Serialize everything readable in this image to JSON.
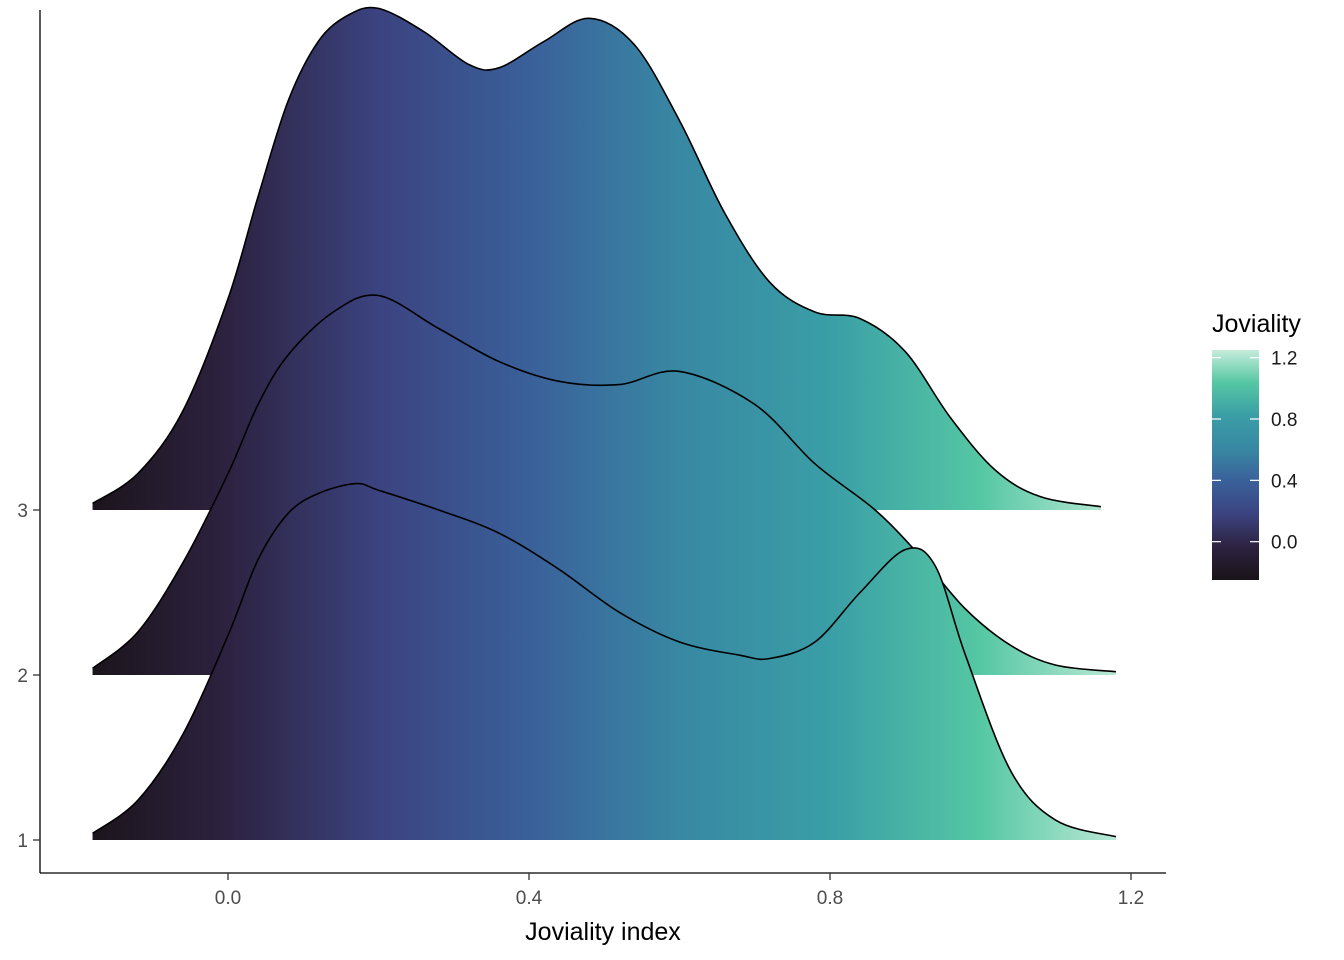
{
  "chart_data": {
    "type": "ridgeline",
    "xlabel": "Joviality index",
    "ylabel": "",
    "xlim": [
      -0.2,
      1.25
    ],
    "x_ticks": [
      0.0,
      0.4,
      0.8,
      1.2
    ],
    "x_tick_labels": [
      "0.0",
      "0.4",
      "0.8",
      "1.2"
    ],
    "categories": [
      "1",
      "2",
      "3"
    ],
    "fill_gradient_by": "x",
    "legend": {
      "title": "Joviality",
      "ticks": [
        0.0,
        0.4,
        0.8,
        1.2
      ],
      "tick_labels": [
        "0.0",
        "0.4",
        "0.8",
        "1.2"
      ],
      "range": [
        -0.25,
        1.25
      ],
      "position": "right"
    },
    "colors": [
      "#1a1318",
      "#2d2240",
      "#3b4380",
      "#3a609a",
      "#3888a3",
      "#3a9ea6",
      "#55c7a3",
      "#c5ecdb"
    ],
    "series": [
      {
        "name": "1",
        "x": [
          -0.18,
          -0.12,
          -0.06,
          0.0,
          0.04,
          0.08,
          0.12,
          0.17,
          0.2,
          0.28,
          0.36,
          0.44,
          0.52,
          0.6,
          0.68,
          0.72,
          0.78,
          0.84,
          0.9,
          0.94,
          0.98,
          1.04,
          1.1,
          1.18
        ],
        "density": [
          0.02,
          0.12,
          0.32,
          0.62,
          0.85,
          0.99,
          1.05,
          1.08,
          1.06,
          1.0,
          0.93,
          0.82,
          0.69,
          0.6,
          0.56,
          0.55,
          0.6,
          0.75,
          0.88,
          0.83,
          0.56,
          0.21,
          0.06,
          0.01
        ]
      },
      {
        "name": "2",
        "x": [
          -0.18,
          -0.12,
          -0.06,
          0.0,
          0.04,
          0.08,
          0.14,
          0.2,
          0.28,
          0.36,
          0.44,
          0.52,
          0.6,
          0.7,
          0.78,
          0.86,
          0.92,
          0.98,
          1.04,
          1.1,
          1.18
        ],
        "density": [
          0.02,
          0.13,
          0.34,
          0.61,
          0.82,
          0.97,
          1.1,
          1.15,
          1.05,
          0.95,
          0.89,
          0.88,
          0.92,
          0.82,
          0.64,
          0.5,
          0.36,
          0.2,
          0.09,
          0.03,
          0.01
        ]
      },
      {
        "name": "3",
        "x": [
          -0.18,
          -0.12,
          -0.06,
          0.0,
          0.04,
          0.08,
          0.12,
          0.16,
          0.2,
          0.26,
          0.32,
          0.36,
          0.42,
          0.48,
          0.54,
          0.6,
          0.66,
          0.72,
          0.78,
          0.84,
          0.9,
          0.96,
          1.02,
          1.08,
          1.16
        ],
        "density": [
          0.02,
          0.11,
          0.3,
          0.64,
          0.95,
          1.24,
          1.42,
          1.5,
          1.52,
          1.45,
          1.35,
          1.34,
          1.42,
          1.49,
          1.41,
          1.18,
          0.9,
          0.69,
          0.6,
          0.58,
          0.48,
          0.28,
          0.12,
          0.04,
          0.01
        ]
      }
    ]
  }
}
